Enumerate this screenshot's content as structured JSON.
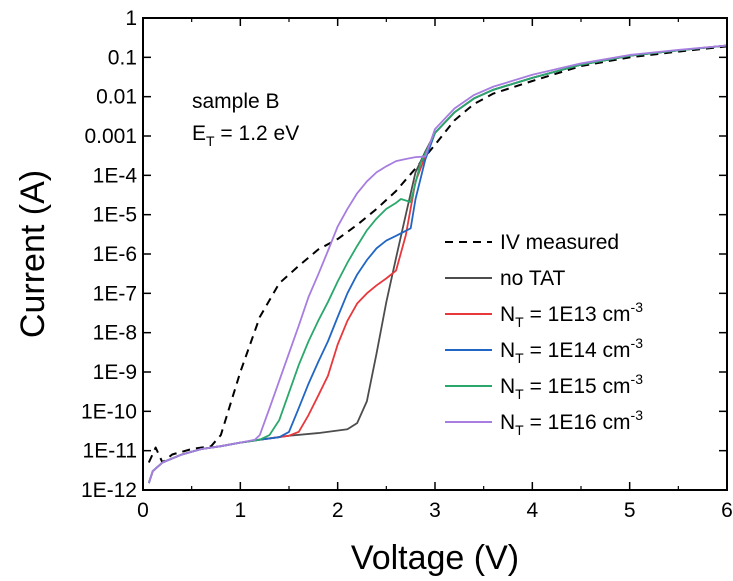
{
  "chart_data": {
    "type": "line",
    "xlabel": "Voltage (V)",
    "ylabel": "Current (A)",
    "xlim": [
      0,
      6
    ],
    "ylim": [
      1e-12,
      1
    ],
    "yscale": "log",
    "x_ticks": [
      0,
      1,
      2,
      3,
      4,
      5,
      6
    ],
    "x_tick_labels": [
      "0",
      "1",
      "2",
      "3",
      "4",
      "5",
      "6"
    ],
    "y_ticks": [
      1e-12,
      1e-11,
      1e-10,
      1e-09,
      1e-08,
      1e-07,
      1e-06,
      1e-05,
      0.0001,
      0.001,
      0.01,
      0.1,
      1
    ],
    "y_tick_labels": [
      "1E-12",
      "1E-11",
      "1E-10",
      "1E-9",
      "1E-8",
      "1E-7",
      "1E-6",
      "1E-5",
      "1E-4",
      "0.001",
      "0.01",
      "0.1",
      "1"
    ],
    "grid": false,
    "legend_position": "right",
    "annotation": {
      "line1": "sample B",
      "line2_main": "E",
      "line2_sub": "T",
      "line2_rest": " = 1.2 eV"
    },
    "series": [
      {
        "name": "IV measured",
        "legend_label": "IV measured",
        "color": "#000000",
        "dash": "8,6",
        "x": [
          0.06,
          0.13,
          0.2,
          0.3,
          0.5,
          0.7,
          0.8,
          1.0,
          1.2,
          1.4,
          1.6,
          1.8,
          2.0,
          2.2,
          2.4,
          2.6,
          2.8,
          3.0,
          3.2,
          3.4,
          3.6,
          4.0,
          4.5,
          5.0,
          5.5,
          6.0
        ],
        "y": [
          5e-12,
          1.2e-11,
          5e-12,
          8e-12,
          1.1e-11,
          1.3e-11,
          2.5e-11,
          1e-09,
          2.5e-08,
          1.8e-07,
          5e-07,
          1.3e-06,
          2.4e-06,
          5.5e-06,
          1.4e-05,
          4e-05,
          0.00015,
          0.0006,
          0.0025,
          0.0065,
          0.012,
          0.025,
          0.06,
          0.1,
          0.14,
          0.19
        ]
      },
      {
        "name": "no TAT",
        "legend_label": "no TAT",
        "color": "#4d4d4d",
        "dash": "",
        "x": [
          0.06,
          0.1,
          0.2,
          0.4,
          0.6,
          0.8,
          1.0,
          1.2,
          1.5,
          1.8,
          2.1,
          2.2,
          2.3,
          2.4,
          2.5,
          2.6,
          2.7,
          2.8,
          2.9,
          3.0,
          3.2,
          3.4,
          3.6,
          4.0,
          4.5,
          5.0,
          5.5,
          6.0
        ],
        "y": [
          1.5e-12,
          3e-12,
          5e-12,
          8e-12,
          1.1e-11,
          1.3e-11,
          1.6e-11,
          1.9e-11,
          2.4e-11,
          2.8e-11,
          3.5e-11,
          5e-11,
          1.8e-10,
          3e-09,
          6e-08,
          8e-07,
          1e-05,
          0.00012,
          0.0004,
          0.0012,
          0.004,
          0.009,
          0.015,
          0.03,
          0.065,
          0.11,
          0.15,
          0.2
        ]
      },
      {
        "name": "N_T = 1E13 cm^-3",
        "legend_main": "N",
        "legend_sub": "T",
        "legend_rest": " = 1E13 cm",
        "legend_sup": "-3",
        "color": "#e8383b",
        "dash": "",
        "x": [
          0.06,
          0.1,
          0.2,
          0.4,
          0.6,
          0.8,
          1.0,
          1.2,
          1.5,
          1.6,
          1.7,
          1.8,
          1.9,
          2.0,
          2.1,
          2.2,
          2.3,
          2.4,
          2.5,
          2.6,
          2.7,
          2.8,
          2.9,
          3.0,
          3.2,
          3.4,
          3.6,
          4.0,
          4.5,
          5.0,
          5.5,
          6.0
        ],
        "y": [
          1.5e-12,
          3e-12,
          5e-12,
          8e-12,
          1.1e-11,
          1.3e-11,
          1.6e-11,
          1.9e-11,
          2.4e-11,
          3e-11,
          8e-11,
          2.5e-10,
          8e-10,
          5e-09,
          2e-08,
          5.5e-08,
          1e-07,
          1.6e-07,
          2.4e-07,
          3.8e-07,
          3e-06,
          7e-05,
          0.0003,
          0.0012,
          0.004,
          0.009,
          0.015,
          0.03,
          0.065,
          0.11,
          0.15,
          0.2
        ]
      },
      {
        "name": "N_T = 1E14 cm^-3",
        "legend_main": "N",
        "legend_sub": "T",
        "legend_rest": " = 1E14 cm",
        "legend_sup": "-3",
        "color": "#2166c4",
        "dash": "",
        "x": [
          0.06,
          0.1,
          0.2,
          0.4,
          0.6,
          0.8,
          1.0,
          1.2,
          1.4,
          1.5,
          1.6,
          1.7,
          1.8,
          1.9,
          2.0,
          2.1,
          2.2,
          2.3,
          2.4,
          2.5,
          2.6,
          2.75,
          2.8,
          2.9,
          3.0,
          3.2,
          3.4,
          3.6,
          4.0,
          4.5,
          5.0,
          5.5,
          6.0
        ],
        "y": [
          1.5e-12,
          3e-12,
          5e-12,
          8e-12,
          1.1e-11,
          1.3e-11,
          1.6e-11,
          1.9e-11,
          2.2e-11,
          3e-11,
          1.2e-10,
          5e-10,
          1.8e-09,
          6e-09,
          2.5e-08,
          1e-07,
          3e-07,
          7e-07,
          1.4e-06,
          2.2e-06,
          2.9e-06,
          4.5e-06,
          2.5e-05,
          0.00025,
          0.0012,
          0.004,
          0.009,
          0.015,
          0.03,
          0.065,
          0.11,
          0.15,
          0.2
        ]
      },
      {
        "name": "N_T = 1E15 cm^-3",
        "legend_main": "N",
        "legend_sub": "T",
        "legend_rest": " = 1E15 cm",
        "legend_sup": "-3",
        "color": "#2aa86b",
        "dash": "",
        "x": [
          0.06,
          0.1,
          0.2,
          0.4,
          0.6,
          0.8,
          1.0,
          1.2,
          1.3,
          1.4,
          1.5,
          1.6,
          1.7,
          1.8,
          1.9,
          2.0,
          2.1,
          2.2,
          2.3,
          2.4,
          2.5,
          2.6,
          2.65,
          2.75,
          2.85,
          3.0,
          3.2,
          3.4,
          3.6,
          4.0,
          4.5,
          5.0,
          5.5,
          6.0
        ],
        "y": [
          1.5e-12,
          3e-12,
          5e-12,
          8e-12,
          1.1e-11,
          1.3e-11,
          1.6e-11,
          1.9e-11,
          2.5e-11,
          6e-11,
          3e-10,
          1.5e-09,
          6e-09,
          2e-08,
          6e-08,
          2e-07,
          6e-07,
          1.6e-06,
          4e-06,
          8e-06,
          1.4e-05,
          2e-05,
          2.5e-05,
          2.1e-05,
          0.0002,
          0.0012,
          0.004,
          0.009,
          0.015,
          0.03,
          0.065,
          0.11,
          0.15,
          0.2
        ]
      },
      {
        "name": "N_T = 1E16 cm^-3",
        "legend_main": "N",
        "legend_sub": "T",
        "legend_rest": " = 1E16 cm",
        "legend_sup": "-3",
        "color": "#a77de0",
        "dash": "",
        "x": [
          0.06,
          0.1,
          0.2,
          0.4,
          0.6,
          0.8,
          1.0,
          1.15,
          1.2,
          1.3,
          1.4,
          1.5,
          1.6,
          1.7,
          1.8,
          1.9,
          2.0,
          2.1,
          2.2,
          2.3,
          2.4,
          2.5,
          2.6,
          2.7,
          2.8,
          2.9,
          3.0,
          3.2,
          3.4,
          3.6,
          4.0,
          4.5,
          5.0,
          5.5,
          6.0
        ],
        "y": [
          1.5e-12,
          3e-12,
          5e-12,
          8e-12,
          1.1e-11,
          1.3e-11,
          1.6e-11,
          1.9e-11,
          2.5e-11,
          1.2e-10,
          6e-10,
          3e-09,
          1.5e-08,
          8e-08,
          3e-07,
          1.2e-06,
          5e-06,
          1.4e-05,
          3.5e-05,
          7e-05,
          0.00012,
          0.00017,
          0.00023,
          0.00026,
          0.00029,
          0.0003,
          0.0015,
          0.005,
          0.011,
          0.018,
          0.036,
          0.07,
          0.115,
          0.155,
          0.2
        ]
      }
    ]
  }
}
